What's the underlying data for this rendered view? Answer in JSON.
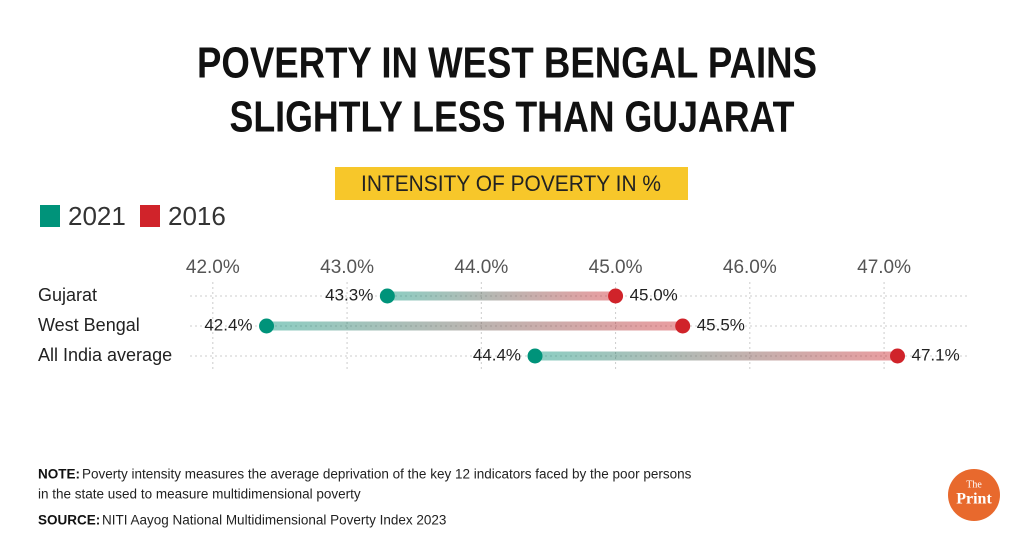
{
  "chart_data": {
    "type": "dumbbell",
    "title": [
      "POVERTY IN WEST BENGAL PAINS",
      "SLIGHTLY LESS THAN GUJARAT"
    ],
    "subtitle": "INTENSITY OF POVERTY IN %",
    "categories": [
      "Gujarat",
      "West Bengal",
      "All India average"
    ],
    "series": [
      {
        "name": "2021",
        "color": "#00937a",
        "values": [
          43.3,
          42.4,
          44.4
        ],
        "value_labels": [
          "43.3%",
          "42.4%",
          "44.4%"
        ]
      },
      {
        "name": "2016",
        "color": "#d0232a",
        "values": [
          45.0,
          45.5,
          47.1
        ],
        "value_labels": [
          "45.0%",
          "45.5%",
          "47.1%"
        ]
      }
    ],
    "xlim": [
      41.83,
      47.64
    ],
    "xticks": [
      {
        "value": 42,
        "label": "42.0%"
      },
      {
        "value": 43,
        "label": "43.0%"
      },
      {
        "value": 44,
        "label": "44.0%"
      },
      {
        "value": 45,
        "label": "45.0%"
      },
      {
        "value": 46,
        "label": "46.0%"
      },
      {
        "value": 47,
        "label": "47.0%"
      }
    ],
    "grid": true,
    "note_label": "NOTE:",
    "note": [
      "Poverty intensity measures the average deprivation of the key 12 indicators faced by the poor persons",
      "in the state used to measure multidimensional poverty"
    ],
    "source_label": "SOURCE:",
    "source": "NITI Aayog National Multidimensional Poverty Index 2023",
    "brand": [
      "The",
      "Print"
    ]
  }
}
